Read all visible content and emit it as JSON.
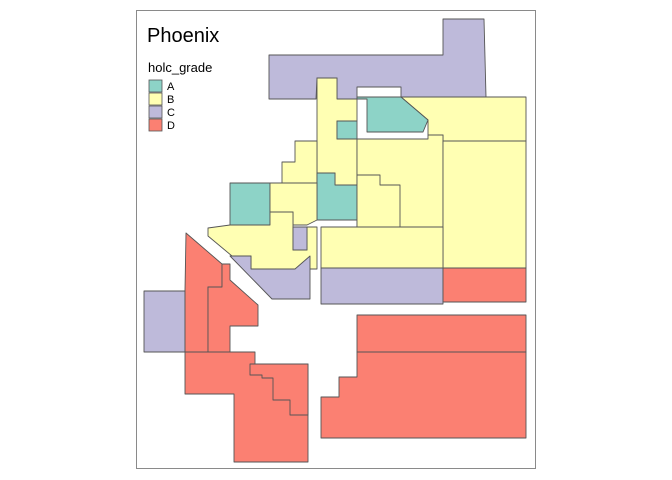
{
  "map": {
    "title": "Phoenix",
    "legend": {
      "title": "holc_grade",
      "placement": "top-left",
      "items": [
        {
          "grade": "A",
          "label": "A",
          "color": "#8DD3C7"
        },
        {
          "grade": "B",
          "label": "B",
          "color": "#FFFFB3"
        },
        {
          "grade": "C",
          "label": "C",
          "color": "#BEBADA"
        },
        {
          "grade": "D",
          "label": "D",
          "color": "#FB8072"
        }
      ]
    },
    "zone_grades": [
      "C",
      "B",
      "B",
      "A",
      "B",
      "B",
      "B",
      "A",
      "A",
      "A",
      "B",
      "B",
      "B",
      "B",
      "C",
      "C",
      "C",
      "D",
      "C",
      "D",
      "D",
      "D",
      "D",
      "D",
      "D"
    ]
  }
}
